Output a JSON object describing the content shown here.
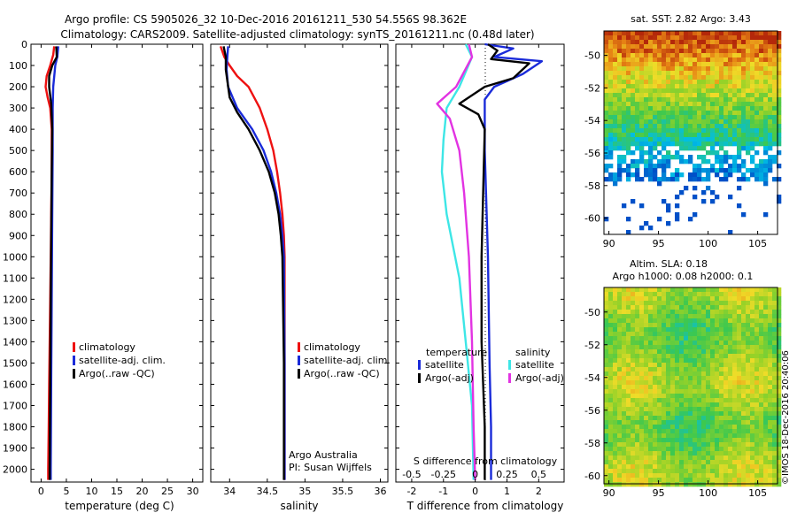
{
  "header": {
    "line1": "Argo profile: CS 5905026_32 10-Dec-2016 20161211_530 54.556S 98.362E",
    "line2": "Climatology: CARS2009. Satellite-adjusted climatology: synTS_20161211.nc (0.48d later)"
  },
  "colors": {
    "climatology": "#ee1111",
    "satellite": "#1a2bd9",
    "argo": "#000000",
    "sal_satellite": "#3de6e6",
    "sal_argo": "#e233e2"
  },
  "depth_ticks": [
    0,
    100,
    200,
    300,
    400,
    500,
    600,
    700,
    800,
    900,
    1000,
    1100,
    1200,
    1300,
    1400,
    1500,
    1600,
    1700,
    1800,
    1900,
    2000
  ],
  "chart_data": [
    {
      "type": "line",
      "panel": "temperature",
      "xlabel": "temperature (deg C)",
      "ylabel": "",
      "xlim": [
        -2,
        32
      ],
      "ylim": [
        2060,
        0
      ],
      "x_ticks": [
        0,
        5,
        10,
        15,
        20,
        25,
        30
      ],
      "legend": [
        "climatology",
        "satellite-adj. clim.",
        "Argo(..raw -QC)"
      ],
      "series": [
        {
          "name": "climatology",
          "color": "#ee1111",
          "points": [
            [
              2.6,
              10
            ],
            [
              2.4,
              50
            ],
            [
              1.8,
              100
            ],
            [
              1.1,
              150
            ],
            [
              0.9,
              200
            ],
            [
              1.3,
              250
            ],
            [
              1.8,
              300
            ],
            [
              2.1,
              400
            ],
            [
              2.1,
              600
            ],
            [
              2.0,
              800
            ],
            [
              1.9,
              1000
            ],
            [
              1.8,
              1200
            ],
            [
              1.7,
              1400
            ],
            [
              1.6,
              1600
            ],
            [
              1.5,
              1800
            ],
            [
              1.4,
              2000
            ],
            [
              1.4,
              2050
            ]
          ]
        },
        {
          "name": "satellite-adj. clim.",
          "color": "#1a2bd9",
          "points": [
            [
              3.4,
              10
            ],
            [
              3.2,
              60
            ],
            [
              2.8,
              100
            ],
            [
              2.4,
              200
            ],
            [
              2.3,
              300
            ],
            [
              2.3,
              500
            ],
            [
              2.2,
              800
            ],
            [
              2.1,
              1200
            ],
            [
              2.0,
              1600
            ],
            [
              1.9,
              2000
            ],
            [
              1.9,
              2050
            ]
          ]
        },
        {
          "name": "Argo(..raw -QC)",
          "color": "#000000",
          "points": [
            [
              3.0,
              10
            ],
            [
              3.1,
              60
            ],
            [
              2.2,
              100
            ],
            [
              1.6,
              150
            ],
            [
              1.6,
              200
            ],
            [
              2.0,
              280
            ],
            [
              2.2,
              400
            ],
            [
              2.1,
              600
            ],
            [
              2.0,
              900
            ],
            [
              1.9,
              1200
            ],
            [
              1.8,
              1600
            ],
            [
              1.7,
              2000
            ],
            [
              1.7,
              2050
            ]
          ]
        }
      ]
    },
    {
      "type": "line",
      "panel": "salinity",
      "xlabel": "salinity",
      "ylabel": "",
      "xlim": [
        33.75,
        36.1
      ],
      "ylim": [
        2060,
        0
      ],
      "x_ticks": [
        34,
        34.5,
        35,
        35.5,
        36
      ],
      "legend": [
        "climatology",
        "satellite-adj. clim.",
        "Argo(..raw -QC)"
      ],
      "annotation": [
        "Argo Australia",
        "PI: Susan Wijffels"
      ],
      "series": [
        {
          "name": "climatology",
          "color": "#ee1111",
          "points": [
            [
              33.88,
              10
            ],
            [
              33.93,
              60
            ],
            [
              34.0,
              100
            ],
            [
              34.1,
              150
            ],
            [
              34.25,
              200
            ],
            [
              34.4,
              300
            ],
            [
              34.5,
              400
            ],
            [
              34.58,
              500
            ],
            [
              34.63,
              600
            ],
            [
              34.67,
              700
            ],
            [
              34.7,
              800
            ],
            [
              34.72,
              900
            ],
            [
              34.73,
              1000
            ],
            [
              34.73,
              1500
            ],
            [
              34.73,
              2050
            ]
          ]
        },
        {
          "name": "satellite-adj. clim.",
          "color": "#1a2bd9",
          "points": [
            [
              33.98,
              10
            ],
            [
              33.97,
              60
            ],
            [
              33.96,
              120
            ],
            [
              33.98,
              200
            ],
            [
              34.1,
              300
            ],
            [
              34.3,
              400
            ],
            [
              34.45,
              500
            ],
            [
              34.55,
              600
            ],
            [
              34.62,
              700
            ],
            [
              34.67,
              800
            ],
            [
              34.7,
              900
            ],
            [
              34.72,
              1000
            ],
            [
              34.73,
              1500
            ],
            [
              34.73,
              2050
            ]
          ]
        },
        {
          "name": "Argo(..raw -QC)",
          "color": "#000000",
          "points": [
            [
              33.92,
              10
            ],
            [
              33.95,
              60
            ],
            [
              33.95,
              120
            ],
            [
              34.0,
              250
            ],
            [
              34.1,
              320
            ],
            [
              34.25,
              400
            ],
            [
              34.4,
              500
            ],
            [
              34.52,
              600
            ],
            [
              34.6,
              700
            ],
            [
              34.65,
              800
            ],
            [
              34.68,
              900
            ],
            [
              34.7,
              1000
            ],
            [
              34.72,
              1500
            ],
            [
              34.72,
              2050
            ]
          ]
        }
      ]
    },
    {
      "type": "line",
      "panel": "difference from climatology",
      "xlabel": "T difference from climatology",
      "xlabel_top": "S difference from climatology",
      "xlim": [
        -2.5,
        2.8
      ],
      "ylim": [
        2060,
        0
      ],
      "x_ticks": [
        -2,
        -1,
        0,
        1,
        2
      ],
      "x2_ticks": [
        -0.5,
        -0.25,
        0,
        0.25,
        0.5
      ],
      "legend_headers": [
        "temperature",
        "salinity"
      ],
      "legend": [
        "satellite",
        "Argo(-adj)",
        "satellite",
        "Argo(-adj)"
      ],
      "series": [
        {
          "name": "satellite",
          "quantity": "temperature",
          "color": "#1a2bd9",
          "points": [
            [
              0.3,
              0
            ],
            [
              1.2,
              20
            ],
            [
              0.6,
              60
            ],
            [
              2.1,
              80
            ],
            [
              1.5,
              140
            ],
            [
              0.6,
              200
            ],
            [
              0.3,
              260
            ],
            [
              0.3,
              500
            ],
            [
              0.4,
              1000
            ],
            [
              0.45,
              1500
            ],
            [
              0.5,
              1800
            ],
            [
              0.5,
              2050
            ]
          ]
        },
        {
          "name": "Argo(-adj)",
          "quantity": "temperature",
          "color": "#000000",
          "points": [
            [
              0.4,
              0
            ],
            [
              0.7,
              30
            ],
            [
              0.5,
              70
            ],
            [
              1.7,
              90
            ],
            [
              1.2,
              160
            ],
            [
              0.3,
              200
            ],
            [
              -0.5,
              280
            ],
            [
              0.1,
              330
            ],
            [
              0.3,
              400
            ],
            [
              0.25,
              700
            ],
            [
              0.2,
              1000
            ],
            [
              0.2,
              1400
            ],
            [
              0.25,
              1600
            ],
            [
              0.3,
              1800
            ],
            [
              0.3,
              2050
            ]
          ]
        },
        {
          "name": "satellite",
          "quantity": "salinity",
          "color": "#3de6e6",
          "points": [
            [
              -0.3,
              0
            ],
            [
              -0.1,
              60
            ],
            [
              -0.5,
              200
            ],
            [
              -0.9,
              300
            ],
            [
              -1.0,
              450
            ],
            [
              -1.05,
              600
            ],
            [
              -0.9,
              800
            ],
            [
              -0.5,
              1100
            ],
            [
              -0.3,
              1400
            ],
            [
              -0.1,
              1700
            ],
            [
              -0.05,
              2050
            ]
          ]
        },
        {
          "name": "Argo(-adj)",
          "quantity": "salinity",
          "color": "#e233e2",
          "points": [
            [
              -0.2,
              0
            ],
            [
              -0.1,
              60
            ],
            [
              -0.6,
              200
            ],
            [
              -1.2,
              280
            ],
            [
              -0.8,
              350
            ],
            [
              -0.5,
              500
            ],
            [
              -0.35,
              700
            ],
            [
              -0.2,
              1000
            ],
            [
              -0.1,
              1400
            ],
            [
              -0.05,
              1800
            ],
            [
              0,
              2050
            ]
          ]
        }
      ]
    },
    {
      "type": "heatmap",
      "panel": "sat. SST",
      "title": "sat. SST: 2.82 Argo: 3.43",
      "x_ticks": [
        90,
        95,
        100,
        105
      ],
      "y_ticks": [
        -50,
        -52,
        -54,
        -56,
        -58,
        -60
      ],
      "xlim": [
        89.5,
        107
      ],
      "ylim": [
        -61,
        -48.5
      ]
    },
    {
      "type": "heatmap",
      "panel": "Altim. SLA",
      "title": "Altim. SLA: 0.18",
      "subtitle": "Argo h1000: 0.08 h2000: 0.1",
      "x_ticks": [
        90,
        95,
        100,
        105
      ],
      "y_ticks": [
        -50,
        -52,
        -54,
        -56,
        -58,
        -60
      ],
      "xlim": [
        89.5,
        107
      ],
      "ylim": [
        -60.5,
        -48.5
      ]
    }
  ],
  "credit": "©IMOS 18-Dec-2016 20:40:06"
}
